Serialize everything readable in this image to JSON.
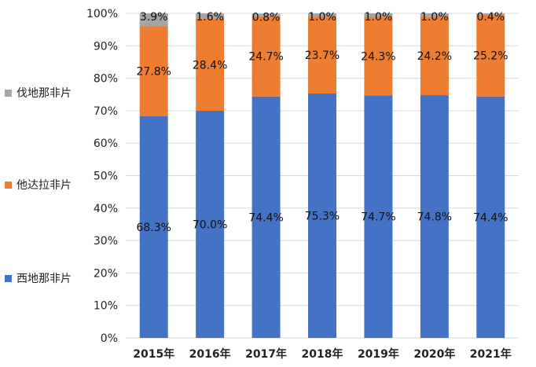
{
  "chart_data": {
    "type": "bar",
    "stacked": true,
    "categories": [
      "2015年",
      "2016年",
      "2017年",
      "2018年",
      "2019年",
      "2020年",
      "2021年"
    ],
    "series": [
      {
        "name": "西地那非片",
        "color": "#4472C4",
        "values": [
          68.3,
          70.0,
          74.4,
          75.3,
          74.7,
          74.8,
          74.4
        ],
        "labels": [
          "68.3%",
          "70.0%",
          "74.4%",
          "75.3%",
          "74.7%",
          "74.8%",
          "74.4%"
        ]
      },
      {
        "name": "他达拉非片",
        "color": "#ED7D31",
        "values": [
          27.8,
          28.4,
          24.7,
          23.7,
          24.3,
          24.2,
          25.2
        ],
        "labels": [
          "27.8%",
          "28.4%",
          "24.7%",
          "23.7%",
          "24.3%",
          "24.2%",
          "25.2%"
        ]
      },
      {
        "name": "伐地那非片",
        "color": "#A5A5A5",
        "values": [
          3.9,
          1.6,
          0.8,
          1.0,
          1.0,
          1.0,
          0.4
        ],
        "labels": [
          "3.9%",
          "1.6%",
          "0.8%",
          "1.0%",
          "1.0%",
          "1.0%",
          "0.4%"
        ]
      }
    ],
    "ylim": [
      0,
      100
    ],
    "yticks": [
      "0%",
      "10%",
      "20%",
      "30%",
      "40%",
      "50%",
      "60%",
      "70%",
      "80%",
      "90%",
      "100%"
    ],
    "grid": true,
    "legend_position": "left"
  }
}
